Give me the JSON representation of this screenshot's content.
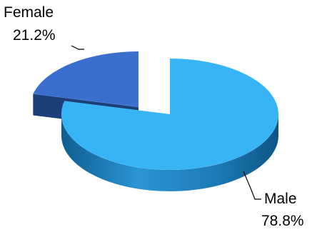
{
  "chart_data": {
    "type": "pie",
    "style": "3d-exploded",
    "categories": [
      "Male",
      "Female"
    ],
    "values": [
      78.8,
      21.2
    ],
    "value_labels": [
      "78.8%",
      "21.2%"
    ],
    "colors": {
      "Male": "#36b4f6",
      "Female": "#3a6fcf"
    },
    "side_colors": {
      "Male": "#1d7cb8",
      "Female": "#1b3f78"
    },
    "legend": "none",
    "title": ""
  }
}
